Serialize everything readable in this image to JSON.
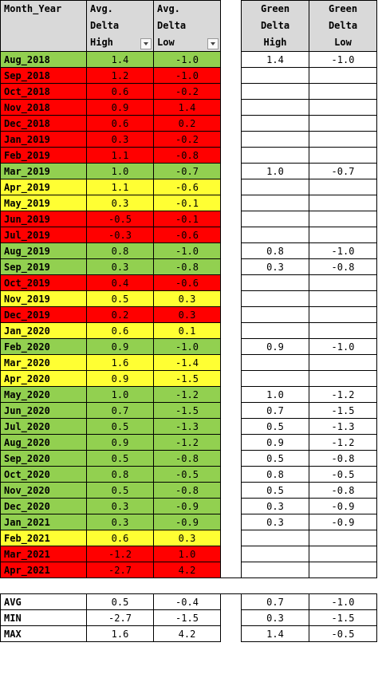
{
  "headers": {
    "month_year": "Month_Year",
    "avg_high": [
      "Avg.",
      "Delta",
      "High"
    ],
    "avg_low": [
      "Avg.",
      "Delta",
      "Low"
    ],
    "green_high": [
      "Green",
      "Delta",
      "High"
    ],
    "green_low": [
      "Green",
      "Delta",
      "Low"
    ]
  },
  "colors": {
    "green": "#92d050",
    "red": "#ff0000",
    "yellow": "#ffff33",
    "header": "#d9d9d9"
  },
  "rows": [
    {
      "month": "Aug_2018",
      "high": "1.4",
      "low": "-1.0",
      "color": "green",
      "gh": "1.4",
      "gl": "-1.0"
    },
    {
      "month": "Sep_2018",
      "high": "1.2",
      "low": "-1.0",
      "color": "red",
      "gh": "",
      "gl": ""
    },
    {
      "month": "Oct_2018",
      "high": "0.6",
      "low": "-0.2",
      "color": "red",
      "gh": "",
      "gl": ""
    },
    {
      "month": "Nov_2018",
      "high": "0.9",
      "low": "1.4",
      "color": "red",
      "gh": "",
      "gl": ""
    },
    {
      "month": "Dec_2018",
      "high": "0.6",
      "low": "0.2",
      "color": "red",
      "gh": "",
      "gl": ""
    },
    {
      "month": "Jan_2019",
      "high": "0.3",
      "low": "-0.2",
      "color": "red",
      "gh": "",
      "gl": ""
    },
    {
      "month": "Feb_2019",
      "high": "1.1",
      "low": "-0.8",
      "color": "red",
      "gh": "",
      "gl": ""
    },
    {
      "month": "Mar_2019",
      "high": "1.0",
      "low": "-0.7",
      "color": "green",
      "gh": "1.0",
      "gl": "-0.7"
    },
    {
      "month": "Apr_2019",
      "high": "1.1",
      "low": "-0.6",
      "color": "yellow",
      "gh": "",
      "gl": ""
    },
    {
      "month": "May_2019",
      "high": "0.3",
      "low": "-0.1",
      "color": "yellow",
      "gh": "",
      "gl": ""
    },
    {
      "month": "Jun_2019",
      "high": "-0.5",
      "low": "-0.1",
      "color": "red",
      "gh": "",
      "gl": ""
    },
    {
      "month": "Jul_2019",
      "high": "-0.3",
      "low": "-0.6",
      "color": "red",
      "gh": "",
      "gl": ""
    },
    {
      "month": "Aug_2019",
      "high": "0.8",
      "low": "-1.0",
      "color": "green",
      "gh": "0.8",
      "gl": "-1.0"
    },
    {
      "month": "Sep_2019",
      "high": "0.3",
      "low": "-0.8",
      "color": "green",
      "gh": "0.3",
      "gl": "-0.8"
    },
    {
      "month": "Oct_2019",
      "high": "0.4",
      "low": "-0.6",
      "color": "red",
      "gh": "",
      "gl": ""
    },
    {
      "month": "Nov_2019",
      "high": "0.5",
      "low": "0.3",
      "color": "yellow",
      "gh": "",
      "gl": ""
    },
    {
      "month": "Dec_2019",
      "high": "0.2",
      "low": "0.3",
      "color": "red",
      "gh": "",
      "gl": ""
    },
    {
      "month": "Jan_2020",
      "high": "0.6",
      "low": "0.1",
      "color": "yellow",
      "gh": "",
      "gl": ""
    },
    {
      "month": "Feb_2020",
      "high": "0.9",
      "low": "-1.0",
      "color": "green",
      "gh": "0.9",
      "gl": "-1.0"
    },
    {
      "month": "Mar_2020",
      "high": "1.6",
      "low": "-1.4",
      "color": "yellow",
      "gh": "",
      "gl": ""
    },
    {
      "month": "Apr_2020",
      "high": "0.9",
      "low": "-1.5",
      "color": "yellow",
      "gh": "",
      "gl": ""
    },
    {
      "month": "May_2020",
      "high": "1.0",
      "low": "-1.2",
      "color": "green",
      "gh": "1.0",
      "gl": "-1.2"
    },
    {
      "month": "Jun_2020",
      "high": "0.7",
      "low": "-1.5",
      "color": "green",
      "gh": "0.7",
      "gl": "-1.5"
    },
    {
      "month": "Jul_2020",
      "high": "0.5",
      "low": "-1.3",
      "color": "green",
      "gh": "0.5",
      "gl": "-1.3"
    },
    {
      "month": "Aug_2020",
      "high": "0.9",
      "low": "-1.2",
      "color": "green",
      "gh": "0.9",
      "gl": "-1.2"
    },
    {
      "month": "Sep_2020",
      "high": "0.5",
      "low": "-0.8",
      "color": "green",
      "gh": "0.5",
      "gl": "-0.8"
    },
    {
      "month": "Oct_2020",
      "high": "0.8",
      "low": "-0.5",
      "color": "green",
      "gh": "0.8",
      "gl": "-0.5"
    },
    {
      "month": "Nov_2020",
      "high": "0.5",
      "low": "-0.8",
      "color": "green",
      "gh": "0.5",
      "gl": "-0.8"
    },
    {
      "month": "Dec_2020",
      "high": "0.3",
      "low": "-0.9",
      "color": "green",
      "gh": "0.3",
      "gl": "-0.9"
    },
    {
      "month": "Jan_2021",
      "high": "0.3",
      "low": "-0.9",
      "color": "green",
      "gh": "0.3",
      "gl": "-0.9"
    },
    {
      "month": "Feb_2021",
      "high": "0.6",
      "low": "0.3",
      "color": "yellow",
      "gh": "",
      "gl": ""
    },
    {
      "month": "Mar_2021",
      "high": "-1.2",
      "low": "1.0",
      "color": "red",
      "gh": "",
      "gl": ""
    },
    {
      "month": "Apr_2021",
      "high": "-2.7",
      "low": "4.2",
      "color": "red",
      "gh": "",
      "gl": ""
    }
  ],
  "stats": [
    {
      "label": "AVG",
      "high": "0.5",
      "low": "-0.4",
      "gh": "0.7",
      "gl": "-1.0"
    },
    {
      "label": "MIN",
      "high": "-2.7",
      "low": "-1.5",
      "gh": "0.3",
      "gl": "-1.5"
    },
    {
      "label": "MAX",
      "high": "1.6",
      "low": "4.2",
      "gh": "1.4",
      "gl": "-0.5"
    }
  ]
}
